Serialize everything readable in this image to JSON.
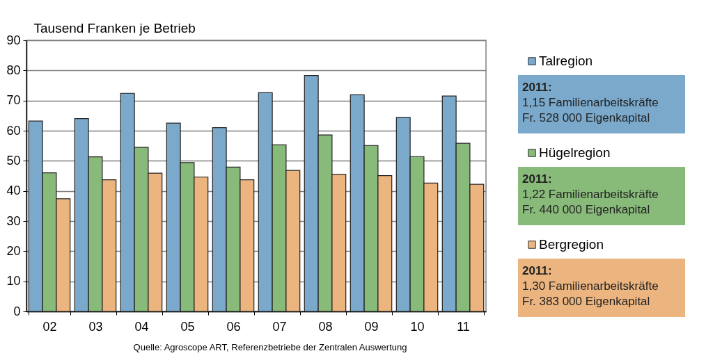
{
  "chart_data": {
    "type": "bar",
    "ylabel": "Tausend Franken je Betrieb",
    "categories": [
      "02",
      "03",
      "04",
      "05",
      "06",
      "07",
      "08",
      "09",
      "10",
      "11"
    ],
    "series": [
      {
        "name": "Talregion",
        "color": "#7aa9cc",
        "values": [
          63.2,
          64.0,
          72.4,
          62.5,
          61.0,
          72.6,
          78.3,
          71.9,
          64.4,
          71.5
        ]
      },
      {
        "name": "Hügelregion",
        "color": "#88ba7a",
        "values": [
          46.0,
          51.3,
          54.5,
          49.4,
          47.9,
          55.3,
          58.6,
          55.1,
          51.4,
          55.8
        ]
      },
      {
        "name": "Bergregion",
        "color": "#ecb580",
        "values": [
          37.4,
          43.7,
          45.9,
          44.6,
          43.7,
          46.8,
          45.5,
          45.1,
          42.6,
          42.2
        ]
      }
    ],
    "ylim": [
      0,
      90
    ],
    "yticks": [
      0,
      10,
      20,
      30,
      40,
      50,
      60,
      70,
      80,
      90
    ],
    "grid": "y",
    "legend": "right",
    "annotations": [
      "2011:\n1,15 Familienarbeitskräfte\nFr. 528 000 Eigenkapital",
      "2011:\n1,22 Familienarbeitskräfte\nFr. 440 000 Eigenkapital",
      "2011:\n1,30 Familienarbeitskräfte\nFr. 383 000 Eigenkapital",
      "Quelle: Agroscope ART, Referenzbetriebe der Zentralen Auswertung"
    ]
  }
}
